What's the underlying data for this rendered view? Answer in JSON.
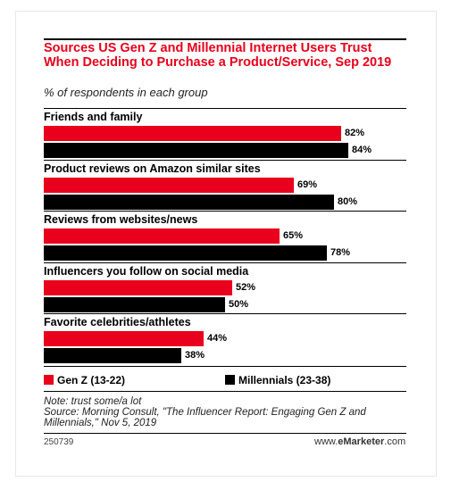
{
  "header": {
    "title": "Sources US Gen Z and Millennial Internet Users Trust When Deciding to Purchase a Product/Service, Sep 2019",
    "subtitle": "% of respondents in each group"
  },
  "footer": {
    "note": "Note: trust some/a lot",
    "source": "Source: Morning Consult, \"The Influencer Report: Engaging Gen Z and Millennials,\" Nov 5, 2019",
    "chart_id": "250739",
    "brand_prefix": "www.",
    "brand_name": "eMarketer",
    "brand_suffix": ".com"
  },
  "colors": {
    "gen_z": "#e8001c",
    "millennials": "#000000",
    "title": "#e8001c"
  },
  "chart_data": {
    "type": "bar",
    "orientation": "horizontal",
    "categories": [
      "Friends and family",
      "Product reviews on Amazon similar sites",
      "Reviews from websites/news",
      "Influencers you follow on social media",
      "Favorite celebrities/athletes"
    ],
    "series": [
      {
        "name": "Gen Z (13-22)",
        "values": [
          82,
          69,
          65,
          52,
          44
        ],
        "labels": [
          "82%",
          "69%",
          "65%",
          "52%",
          "44%"
        ]
      },
      {
        "name": "Millennials (23-38)",
        "values": [
          84,
          80,
          78,
          50,
          38
        ],
        "labels": [
          "84%",
          "80%",
          "78%",
          "50%",
          "38%"
        ]
      }
    ],
    "xlim": [
      0,
      100
    ],
    "legend": "bottom",
    "grid": false
  }
}
